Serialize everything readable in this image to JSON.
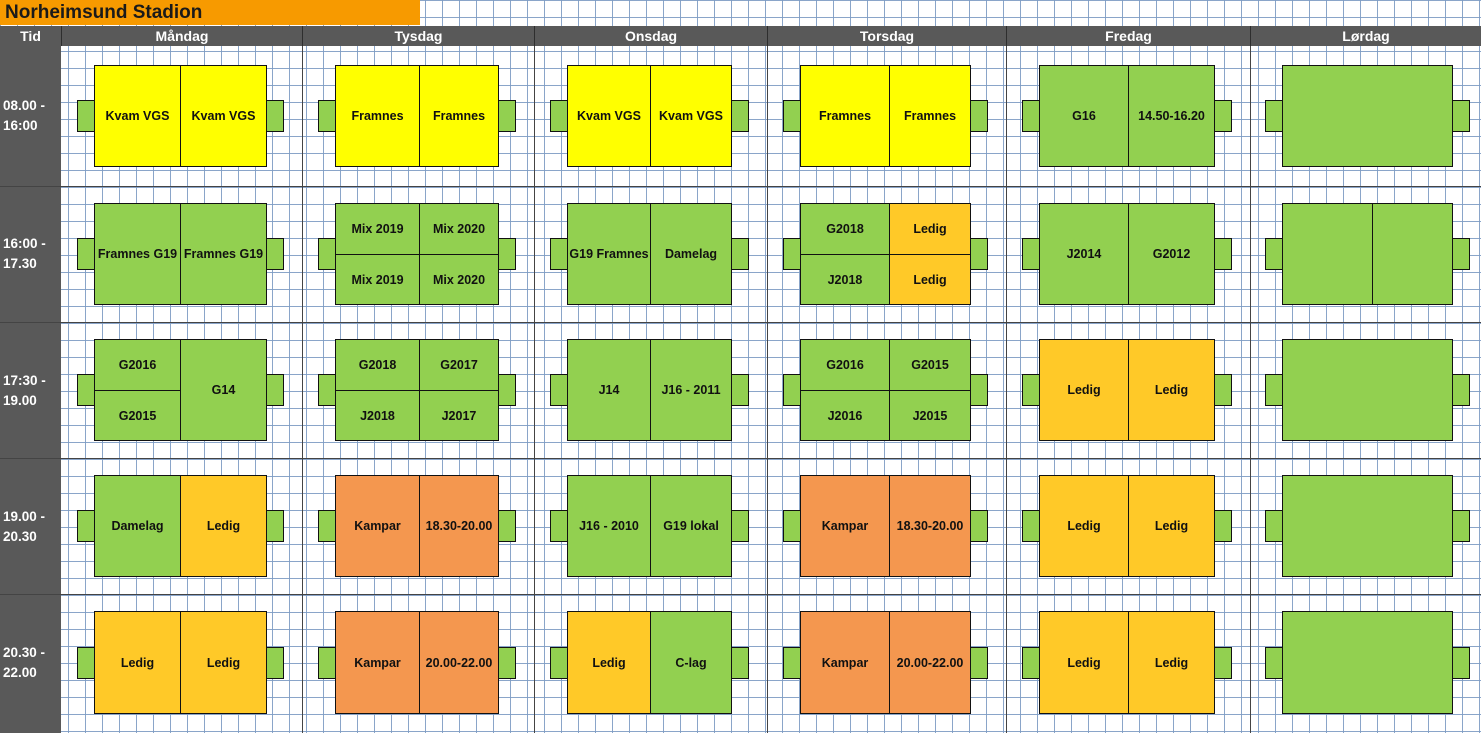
{
  "title": "Norheimsund Stadion",
  "header": {
    "time": "Tid",
    "days": [
      "Måndag",
      "Tysdag",
      "Onsdag",
      "Torsdag",
      "Fredag",
      "Lørdag"
    ]
  },
  "times": [
    {
      "line1": "08.00 -",
      "line2": "16:00"
    },
    {
      "line1": "16:00 -",
      "line2": "17.30"
    },
    {
      "line1": "17:30 -",
      "line2": "19.00"
    },
    {
      "line1": "19.00 -",
      "line2": "20.30"
    },
    {
      "line1": "20.30 -",
      "line2": "22.00"
    }
  ],
  "colors": {
    "green": "#92d050",
    "yellow": "#ffff00",
    "amber": "#ffc928",
    "orange": "#f4974f",
    "title_bg": "#f79a00",
    "header_bg": "#595959"
  },
  "legend_note": "Cell colours: green = assigned team, yellow = school, amber = Ledig (free), orange = Kampar (matches)",
  "slots": [
    [
      {
        "kind": "halves",
        "cells": [
          {
            "t": "Kvam VGS",
            "c": "y"
          },
          {
            "t": "Kvam VGS",
            "c": "y"
          }
        ]
      },
      {
        "kind": "halves",
        "cells": [
          {
            "t": "Framnes",
            "c": "y"
          },
          {
            "t": "Framnes",
            "c": "y"
          }
        ]
      },
      {
        "kind": "halves",
        "cells": [
          {
            "t": "Kvam VGS",
            "c": "y"
          },
          {
            "t": "Kvam VGS",
            "c": "y"
          }
        ]
      },
      {
        "kind": "halves",
        "cells": [
          {
            "t": "Framnes",
            "c": "y"
          },
          {
            "t": "Framnes",
            "c": "y"
          }
        ]
      },
      {
        "kind": "halves",
        "cells": [
          {
            "t": "G16",
            "c": "g"
          },
          {
            "t": "14.50-16.20",
            "c": "g"
          }
        ]
      },
      {
        "kind": "full",
        "cells": [
          {
            "t": "",
            "c": "g"
          }
        ]
      }
    ],
    [
      {
        "kind": "halves",
        "cells": [
          {
            "t": "Framnes G19",
            "c": "g"
          },
          {
            "t": "Framnes G19",
            "c": "g"
          }
        ]
      },
      {
        "kind": "quarters",
        "cells": [
          {
            "t": "Mix 2019",
            "c": "g"
          },
          {
            "t": "Mix 2020",
            "c": "g"
          },
          {
            "t": "Mix 2019",
            "c": "g"
          },
          {
            "t": "Mix 2020",
            "c": "g"
          }
        ]
      },
      {
        "kind": "halves",
        "cells": [
          {
            "t": "G19 Framnes",
            "c": "g"
          },
          {
            "t": "Damelag",
            "c": "g"
          }
        ]
      },
      {
        "kind": "quarters",
        "cells": [
          {
            "t": "G2018",
            "c": "g"
          },
          {
            "t": "Ledig",
            "c": "a"
          },
          {
            "t": "J2018",
            "c": "g"
          },
          {
            "t": "Ledig",
            "c": "a"
          }
        ]
      },
      {
        "kind": "halves",
        "cells": [
          {
            "t": "J2014",
            "c": "g"
          },
          {
            "t": "G2012",
            "c": "g"
          }
        ]
      },
      {
        "kind": "halves",
        "cells": [
          {
            "t": "",
            "c": "g"
          },
          {
            "t": "",
            "c": "g"
          }
        ]
      }
    ],
    [
      {
        "kind": "leftquarters",
        "cells": [
          {
            "t": "G2016",
            "c": "g"
          },
          {
            "t": "G2015",
            "c": "g"
          },
          {
            "t": "G14",
            "c": "g"
          }
        ]
      },
      {
        "kind": "quarters",
        "cells": [
          {
            "t": "G2018",
            "c": "g"
          },
          {
            "t": "G2017",
            "c": "g"
          },
          {
            "t": "J2018",
            "c": "g"
          },
          {
            "t": "J2017",
            "c": "g"
          }
        ]
      },
      {
        "kind": "halves",
        "cells": [
          {
            "t": "J14",
            "c": "g"
          },
          {
            "t": "J16 - 2011",
            "c": "g"
          }
        ]
      },
      {
        "kind": "quarters",
        "cells": [
          {
            "t": "G2016",
            "c": "g"
          },
          {
            "t": "G2015",
            "c": "g"
          },
          {
            "t": "J2016",
            "c": "g"
          },
          {
            "t": "J2015",
            "c": "g"
          }
        ]
      },
      {
        "kind": "halves",
        "cells": [
          {
            "t": "Ledig",
            "c": "a"
          },
          {
            "t": "Ledig",
            "c": "a"
          }
        ]
      },
      {
        "kind": "full",
        "cells": [
          {
            "t": "",
            "c": "g"
          }
        ]
      }
    ],
    [
      {
        "kind": "halves",
        "cells": [
          {
            "t": "Damelag",
            "c": "g"
          },
          {
            "t": "Ledig",
            "c": "a"
          }
        ]
      },
      {
        "kind": "halves",
        "cells": [
          {
            "t": "Kampar",
            "c": "o"
          },
          {
            "t": "18.30-20.00",
            "c": "o"
          }
        ]
      },
      {
        "kind": "halves",
        "cells": [
          {
            "t": "J16 - 2010",
            "c": "g"
          },
          {
            "t": "G19 lokal",
            "c": "g"
          }
        ]
      },
      {
        "kind": "halves",
        "cells": [
          {
            "t": "Kampar",
            "c": "o"
          },
          {
            "t": "18.30-20.00",
            "c": "o"
          }
        ]
      },
      {
        "kind": "halves",
        "cells": [
          {
            "t": "Ledig",
            "c": "a"
          },
          {
            "t": "Ledig",
            "c": "a"
          }
        ]
      },
      {
        "kind": "full",
        "cells": [
          {
            "t": "",
            "c": "g"
          }
        ]
      }
    ],
    [
      {
        "kind": "halves",
        "cells": [
          {
            "t": "Ledig",
            "c": "a"
          },
          {
            "t": "Ledig",
            "c": "a"
          }
        ]
      },
      {
        "kind": "halves",
        "cells": [
          {
            "t": "Kampar",
            "c": "o"
          },
          {
            "t": "20.00-22.00",
            "c": "o"
          }
        ]
      },
      {
        "kind": "halves",
        "cells": [
          {
            "t": "Ledig",
            "c": "a"
          },
          {
            "t": "C-lag",
            "c": "g"
          }
        ]
      },
      {
        "kind": "halves",
        "cells": [
          {
            "t": "Kampar",
            "c": "o"
          },
          {
            "t": "20.00-22.00",
            "c": "o"
          }
        ]
      },
      {
        "kind": "halves",
        "cells": [
          {
            "t": "Ledig",
            "c": "a"
          },
          {
            "t": "Ledig",
            "c": "a"
          }
        ]
      },
      {
        "kind": "full",
        "cells": [
          {
            "t": "",
            "c": "g"
          }
        ]
      }
    ]
  ]
}
